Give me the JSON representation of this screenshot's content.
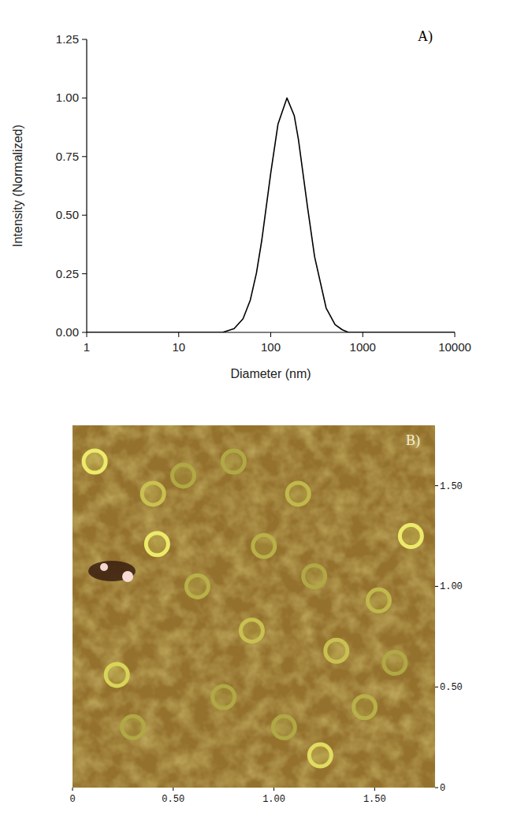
{
  "chart_data": [
    {
      "type": "line",
      "panel": "A)",
      "x_label": "Diameter (nm)",
      "y_label": "Intensity (Normalized)",
      "x": [
        1,
        30,
        40,
        50,
        60,
        70,
        80,
        100,
        120,
        150,
        180,
        200,
        250,
        300,
        400,
        500,
        600,
        700,
        10000
      ],
      "values": [
        0,
        0,
        0.016,
        0.058,
        0.138,
        0.254,
        0.394,
        0.679,
        0.889,
        1.0,
        0.925,
        0.823,
        0.54,
        0.322,
        0.104,
        0.033,
        0.011,
        0,
        0
      ],
      "color": "#000000",
      "log": "x",
      "grid": false,
      "xlim": [
        1,
        10000
      ],
      "xticks": [
        1,
        10,
        100,
        1000,
        10000
      ],
      "ylim": [
        0,
        1.25
      ],
      "yticks": [
        {
          "value": 0,
          "label": "0.00"
        },
        {
          "value": 0.25,
          "label": "0.25"
        },
        {
          "value": 0.5,
          "label": "0.50"
        },
        {
          "value": 0.75,
          "label": "0.75"
        },
        {
          "value": 1.0,
          "label": "1.00"
        },
        {
          "value": 1.25,
          "label": "1.25"
        }
      ]
    },
    {
      "type": "image",
      "panel": "B)",
      "x": [
        0.11,
        0.42,
        1.68,
        0.22,
        1.23,
        0.4,
        0.89,
        1.31,
        1.52,
        1.12,
        0.62,
        0.95,
        1.45,
        0.3,
        0.75,
        1.05,
        1.6,
        0.55,
        1.2,
        0.8
      ],
      "values": [
        1.62,
        1.21,
        1.25,
        0.56,
        0.16,
        1.46,
        0.78,
        0.68,
        0.93,
        1.46,
        1.0,
        1.2,
        0.4,
        0.3,
        0.45,
        0.3,
        0.62,
        1.55,
        1.05,
        1.62
      ],
      "colors": [
        "#ecea6a",
        "#ecea6a",
        "#ecea6a",
        "#d8d458",
        "#e0dc60",
        "#c8c050",
        "#c8c050",
        "#c8c050",
        "#c0b84c",
        "#c0b84c",
        "#b8b048",
        "#b8b048",
        "#b8b048",
        "#b0a844",
        "#b0a844",
        "#b0a844",
        "#b0a844",
        "#b0a844",
        "#b0a844",
        "#b0a844"
      ],
      "xlim": [
        0,
        1.8
      ],
      "xticks": [
        0,
        {
          "value": 0.5,
          "label": "0.50"
        },
        {
          "value": 1.0,
          "label": "1.00"
        },
        {
          "value": 1.5,
          "label": "1.50"
        }
      ],
      "ylim": [
        0,
        1.8
      ],
      "yticks": [
        0,
        {
          "value": 0.5,
          "label": "0.50"
        },
        {
          "value": 1.0,
          "label": "1.00"
        },
        {
          "value": 1.5,
          "label": "1.50"
        }
      ]
    }
  ]
}
